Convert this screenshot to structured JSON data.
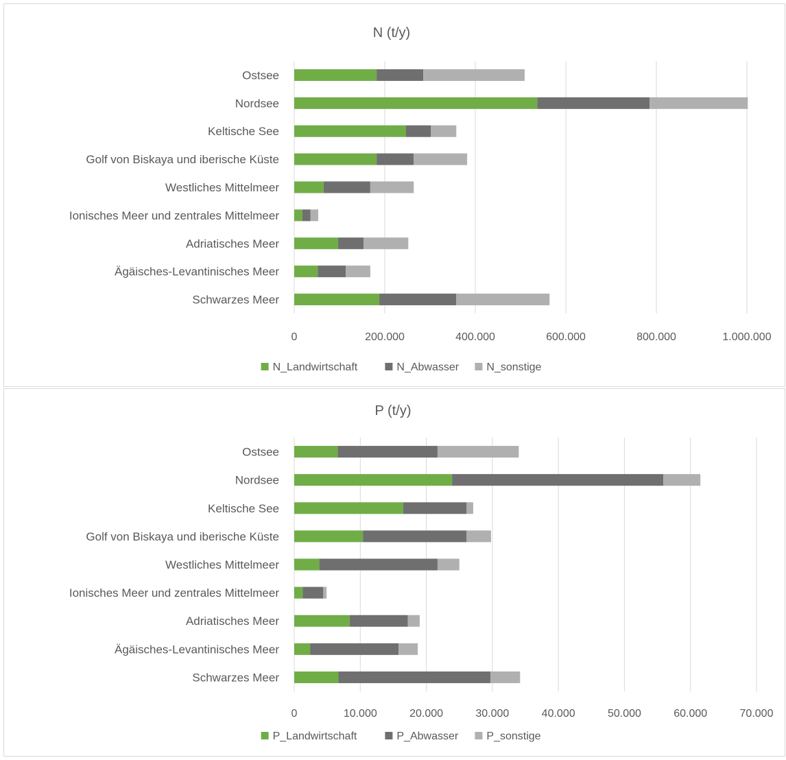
{
  "chart_data": [
    {
      "type": "bar",
      "orientation": "horizontal",
      "stacked": true,
      "title": "N (t/y)",
      "categories": [
        "Ostsee",
        "Nordsee",
        "Keltische See",
        "Golf von Biskaya und iberische Küste",
        "Westliches Mittelmeer",
        "Ionisches Meer und zentrales Mittelmeer",
        "Adriatisches Meer",
        "Ägäisches-Levantinisches Meer",
        "Schwarzes Meer"
      ],
      "series": [
        {
          "name": "N_Landwirtschaft",
          "color": "#70ad47",
          "values": [
            182000,
            537000,
            247000,
            182000,
            65000,
            18000,
            97000,
            52000,
            188000
          ]
        },
        {
          "name": "N_Abwasser",
          "color": "#6f6f6f",
          "values": [
            103000,
            248000,
            55000,
            82000,
            103000,
            18000,
            56000,
            62000,
            170000
          ]
        },
        {
          "name": "N_sonstige",
          "color": "#b0b0b0",
          "values": [
            224000,
            217000,
            56000,
            118000,
            96000,
            17000,
            99000,
            54000,
            206000
          ]
        }
      ],
      "xlim": [
        0,
        1000000
      ],
      "xticks": [
        0,
        200000,
        400000,
        600000,
        800000,
        1000000
      ],
      "xtick_labels": [
        "0",
        "200.000",
        "400.000",
        "600.000",
        "800.000",
        "1.000.000"
      ],
      "grid": "vertical",
      "legend": "bottom"
    },
    {
      "type": "bar",
      "orientation": "horizontal",
      "stacked": true,
      "title": "P (t/y)",
      "categories": [
        "Ostsee",
        "Nordsee",
        "Keltische See",
        "Golf von Biskaya und iberische Küste",
        "Westliches Mittelmeer",
        "Ionisches Meer und zentrales Mittelmeer",
        "Adriatisches Meer",
        "Ägäisches-Levantinisches Meer",
        "Schwarzes Meer"
      ],
      "series": [
        {
          "name": "P_Landwirtschaft",
          "color": "#70ad47",
          "values": [
            6600,
            23900,
            16500,
            10400,
            3800,
            1300,
            8400,
            2400,
            6700
          ]
        },
        {
          "name": "P_Abwasser",
          "color": "#6f6f6f",
          "values": [
            15100,
            32000,
            9600,
            15700,
            17900,
            3100,
            8800,
            13400,
            23000
          ]
        },
        {
          "name": "P_sonstige",
          "color": "#b0b0b0",
          "values": [
            12300,
            5600,
            1000,
            3700,
            3300,
            500,
            1800,
            2900,
            4500
          ]
        }
      ],
      "xlim": [
        0,
        70000
      ],
      "xticks": [
        0,
        10000,
        20000,
        30000,
        40000,
        50000,
        60000,
        70000
      ],
      "xtick_labels": [
        "0",
        "10.000",
        "20.000",
        "30.000",
        "40.000",
        "50.000",
        "60.000",
        "70.000"
      ],
      "grid": "vertical",
      "legend": "bottom"
    }
  ]
}
